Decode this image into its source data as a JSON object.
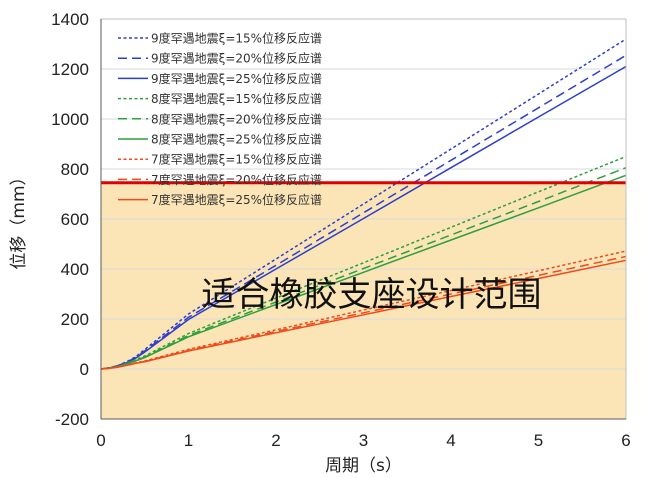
{
  "chart_data": {
    "type": "line",
    "xlabel": "周期（s）",
    "ylabel": "位移（mm）",
    "xlim": [
      0,
      6
    ],
    "ylim": [
      -200,
      1400
    ],
    "xticks": [
      "0",
      "1",
      "2",
      "3",
      "4",
      "5",
      "6"
    ],
    "yticks": [
      "-200",
      "0",
      "200",
      "400",
      "600",
      "800",
      "1000",
      "1200",
      "1400"
    ],
    "grid": "horizontal",
    "legend_position": "top-left",
    "shaded_region": {
      "y_from": -200,
      "y_to": 745,
      "color": "#fbe5b6"
    },
    "threshold": {
      "y": 745,
      "color": "#e00000"
    },
    "annotation": {
      "text": "适合橡胶支座设计范围",
      "x": 3.0,
      "y": 300
    },
    "series": [
      {
        "name": "9度罕遇地震ξ=15%位移反应谱",
        "color": "#2e3fc9",
        "dash": "dotted",
        "x": [
          0,
          0.1,
          0.2,
          0.3,
          0.4,
          0.5,
          1,
          2,
          3,
          4,
          5,
          6
        ],
        "y": [
          0,
          5,
          15,
          30,
          50,
          78,
          220,
          440,
          660,
          880,
          1100,
          1320
        ]
      },
      {
        "name": "9度罕遇地震ξ=20%位移反应谱",
        "color": "#2e3fc9",
        "dash": "dashed",
        "x": [
          0,
          0.1,
          0.2,
          0.3,
          0.4,
          0.5,
          1,
          2,
          3,
          4,
          5,
          6
        ],
        "y": [
          0,
          5,
          14,
          28,
          47,
          72,
          207,
          415,
          625,
          835,
          1045,
          1255
        ]
      },
      {
        "name": "9度罕遇地震ξ=25%位移反应谱",
        "color": "#2e3fc9",
        "dash": "solid",
        "x": [
          0,
          0.1,
          0.2,
          0.3,
          0.4,
          0.5,
          1,
          2,
          3,
          4,
          5,
          6
        ],
        "y": [
          0,
          5,
          13,
          26,
          44,
          68,
          198,
          400,
          602,
          805,
          1008,
          1210
        ]
      },
      {
        "name": "8度罕遇地震ξ=15%位移反应谱",
        "color": "#2e9e3e",
        "dash": "dotted",
        "x": [
          0,
          0.1,
          0.2,
          0.3,
          0.4,
          0.5,
          1,
          2,
          3,
          4,
          5,
          6
        ],
        "y": [
          0,
          4,
          12,
          24,
          38,
          52,
          142,
          284,
          425,
          567,
          709,
          850
        ]
      },
      {
        "name": "8度罕遇地震ξ=20%位移反应谱",
        "color": "#2e9e3e",
        "dash": "dashed",
        "x": [
          0,
          0.1,
          0.2,
          0.3,
          0.4,
          0.5,
          1,
          2,
          3,
          4,
          5,
          6
        ],
        "y": [
          0,
          4,
          11,
          22,
          35,
          48,
          134,
          268,
          402,
          536,
          670,
          805
        ]
      },
      {
        "name": "8度罕遇地震ξ=25%位移反应谱",
        "color": "#2e9e3e",
        "dash": "solid",
        "x": [
          0,
          0.1,
          0.2,
          0.3,
          0.4,
          0.5,
          1,
          2,
          3,
          4,
          5,
          6
        ],
        "y": [
          0,
          4,
          11,
          21,
          33,
          46,
          129,
          258,
          387,
          516,
          645,
          775
        ]
      },
      {
        "name": "7度罕遇地震ξ=15%位移反应谱",
        "color": "#f04a1a",
        "dash": "dotted",
        "x": [
          0,
          0.1,
          0.2,
          0.3,
          0.4,
          0.5,
          1,
          2,
          3,
          4,
          5,
          6
        ],
        "y": [
          0,
          3,
          9,
          17,
          25,
          32,
          79,
          157,
          236,
          314,
          393,
          472
        ]
      },
      {
        "name": "7度罕遇地震ξ=20%位移反应谱",
        "color": "#f04a1a",
        "dash": "dashed",
        "x": [
          0,
          0.1,
          0.2,
          0.3,
          0.4,
          0.5,
          1,
          2,
          3,
          4,
          5,
          6
        ],
        "y": [
          0,
          3,
          8,
          16,
          24,
          30,
          75,
          150,
          225,
          300,
          375,
          450
        ]
      },
      {
        "name": "7度罕遇地震ξ=25%位移反应谱",
        "color": "#f04a1a",
        "dash": "solid",
        "x": [
          0,
          0.1,
          0.2,
          0.3,
          0.4,
          0.5,
          1,
          2,
          3,
          4,
          5,
          6
        ],
        "y": [
          0,
          3,
          8,
          15,
          23,
          29,
          72,
          145,
          217,
          290,
          362,
          435
        ]
      }
    ]
  }
}
